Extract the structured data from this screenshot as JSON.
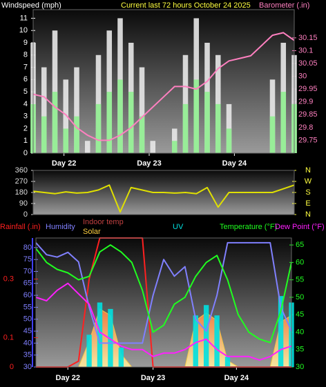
{
  "chart_data": [
    {
      "type": "combo",
      "title": "Current last 72 hours October 24 2025",
      "y_label": "Windspeed (mph)",
      "y2_label": "Barometer (.in)",
      "x": [
        0,
        3,
        6,
        9,
        12,
        15,
        18,
        21,
        24,
        27,
        30,
        33,
        36,
        39,
        42,
        45,
        48,
        51,
        54,
        57,
        60,
        63,
        66,
        69,
        72
      ],
      "xlim": [
        0,
        72
      ],
      "xticks": [
        {
          "value": 8.5,
          "label": "Day 22"
        },
        {
          "value": 32,
          "label": "Day 23"
        },
        {
          "value": 55.5,
          "label": "Day 24"
        }
      ],
      "ylim": [
        0,
        11.7
      ],
      "yticks": [
        0,
        1,
        2,
        3,
        4,
        5,
        6,
        7,
        8,
        9,
        10,
        11
      ],
      "y2lim": [
        29.7,
        30.26
      ],
      "y2ticks": [
        29.75,
        29.8,
        29.85,
        29.9,
        29.95,
        30,
        30.05,
        30.1,
        30.15
      ],
      "series": [
        {
          "kind": "bar",
          "color": "#e8e8e8",
          "values": [
            9,
            7,
            10,
            6,
            7,
            1,
            8,
            10,
            11,
            9,
            7,
            1,
            0,
            2,
            8,
            11,
            9,
            8,
            4,
            0,
            0,
            0,
            6,
            9,
            8
          ]
        },
        {
          "kind": "bar",
          "color": "#90ee90",
          "values": [
            4,
            3,
            5,
            2,
            3,
            0,
            4,
            5,
            6,
            5,
            3,
            0,
            0,
            1,
            4,
            6,
            5,
            4,
            2,
            0,
            0,
            0,
            3,
            5,
            4
          ]
        },
        {
          "kind": "line",
          "axis": "y2",
          "color": "#ff80c0",
          "values": [
            29.93,
            29.92,
            29.88,
            29.85,
            29.8,
            29.77,
            29.75,
            29.75,
            29.77,
            29.8,
            29.84,
            29.88,
            29.92,
            29.96,
            29.96,
            29.95,
            29.98,
            30.03,
            30.06,
            30.07,
            30.08,
            30.12,
            30.16,
            30.17,
            30.14
          ]
        }
      ]
    },
    {
      "type": "line",
      "x": [
        0,
        3,
        6,
        9,
        12,
        15,
        18,
        21,
        24,
        27,
        30,
        33,
        36,
        39,
        42,
        45,
        48,
        51,
        54,
        57,
        60,
        63,
        66,
        69,
        72
      ],
      "xlim": [
        0,
        72
      ],
      "ylim": [
        0,
        360
      ],
      "yticks": [
        0,
        90,
        180,
        270,
        360
      ],
      "y2lim": [
        0,
        360
      ],
      "y2ticks": [
        {
          "value": 0,
          "label": "N"
        },
        {
          "value": 90,
          "label": "E"
        },
        {
          "value": 180,
          "label": "S"
        },
        {
          "value": 270,
          "label": "W"
        },
        {
          "value": 360,
          "label": "N"
        }
      ],
      "series": [
        {
          "kind": "line",
          "color": "#e0e000",
          "values": [
            190,
            180,
            170,
            185,
            175,
            180,
            200,
            240,
            20,
            220,
            200,
            180,
            180,
            175,
            180,
            170,
            220,
            60,
            180,
            180,
            180,
            180,
            180,
            210,
            240
          ]
        }
      ]
    },
    {
      "type": "combo",
      "indoor_temp_label": "Indoor temp",
      "x": [
        0,
        3,
        6,
        9,
        12,
        15,
        18,
        21,
        24,
        27,
        30,
        33,
        36,
        39,
        42,
        45,
        48,
        51,
        54,
        57,
        60,
        63,
        66,
        69,
        72
      ],
      "xlim": [
        0,
        72
      ],
      "xticks": [
        {
          "value": 9,
          "label": "Day 22"
        },
        {
          "value": 33,
          "label": "Day 23"
        },
        {
          "value": 56.5,
          "label": "Day 24"
        }
      ],
      "ylim": [
        0,
        0.44
      ],
      "yticks": [
        0,
        0.1,
        0.3
      ],
      "y3lim": [
        30,
        84
      ],
      "y3ticks": [
        30,
        35,
        40,
        45,
        50,
        55,
        60,
        65,
        70,
        75,
        80
      ],
      "y2lim": [
        30,
        67
      ],
      "y2ticks": [
        30,
        35,
        40,
        45,
        50,
        55,
        60,
        65
      ],
      "y4lim": [
        0,
        100
      ],
      "series": [
        {
          "name": "Solar",
          "kind": "area",
          "axis": "y4",
          "color": "#ffd040",
          "values": [
            0,
            0,
            0,
            0,
            0,
            20,
            45,
            40,
            10,
            0,
            0,
            0,
            0,
            0,
            0,
            36,
            42,
            36,
            5,
            0,
            0,
            0,
            0,
            35,
            40
          ]
        },
        {
          "name": "UV",
          "kind": "bar",
          "axis": "y4",
          "color": "#00e0e0",
          "values": [
            0,
            0,
            0,
            0,
            0,
            25,
            50,
            45,
            15,
            0,
            0,
            0,
            0,
            0,
            0,
            40,
            48,
            40,
            8,
            0,
            0,
            0,
            0,
            55,
            50
          ]
        },
        {
          "name": "Rainfall (.in)",
          "kind": "line",
          "axis": "y",
          "color": "#ff2020",
          "values": [
            0,
            0,
            0,
            0,
            0.02,
            0.3,
            0.44,
            0.44,
            0.44,
            0.44,
            0.44,
            0,
            0,
            0,
            0,
            0,
            0,
            0,
            0,
            0,
            0,
            0,
            0,
            0,
            0
          ]
        },
        {
          "name": "Humidity",
          "kind": "line",
          "axis": "y3",
          "color": "#8080ff",
          "values": [
            82,
            77,
            76,
            78,
            74,
            55,
            40,
            40,
            40,
            40,
            40,
            60,
            75,
            68,
            72,
            50,
            45,
            60,
            82,
            82,
            82,
            82,
            82,
            55,
            45
          ]
        },
        {
          "name": "Temperature (°F)",
          "kind": "line",
          "axis": "y2",
          "color": "#20ff20",
          "values": [
            64,
            60,
            58,
            57,
            55,
            56,
            63,
            65,
            63,
            60,
            52,
            40,
            42,
            48,
            50,
            56,
            60,
            62,
            55,
            45,
            40,
            38,
            37,
            46,
            60
          ]
        },
        {
          "name": "Dew Point (°F)",
          "kind": "line",
          "axis": "y2",
          "color": "#ff20ff",
          "values": [
            50,
            49,
            52,
            54,
            51,
            48,
            40,
            38,
            36,
            35,
            35,
            33,
            34,
            34,
            35,
            37,
            38,
            35,
            33,
            33,
            33,
            32,
            33,
            35,
            36
          ]
        }
      ]
    }
  ]
}
